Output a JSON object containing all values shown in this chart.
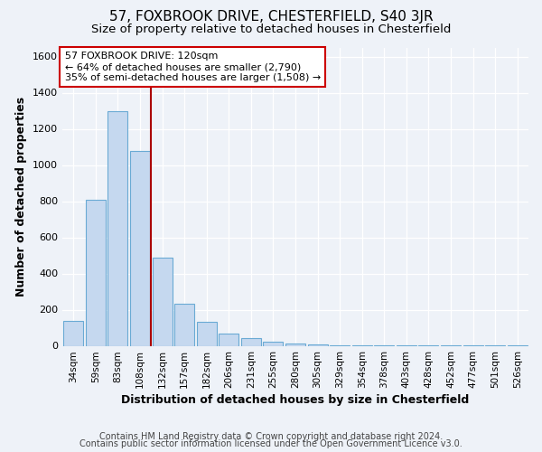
{
  "title": "57, FOXBROOK DRIVE, CHESTERFIELD, S40 3JR",
  "subtitle": "Size of property relative to detached houses in Chesterfield",
  "xlabel": "Distribution of detached houses by size in Chesterfield",
  "ylabel": "Number of detached properties",
  "footer_line1": "Contains HM Land Registry data © Crown copyright and database right 2024.",
  "footer_line2": "Contains public sector information licensed under the Open Government Licence v3.0.",
  "categories": [
    "34sqm",
    "59sqm",
    "83sqm",
    "108sqm",
    "132sqm",
    "157sqm",
    "182sqm",
    "206sqm",
    "231sqm",
    "255sqm",
    "280sqm",
    "305sqm",
    "329sqm",
    "354sqm",
    "378sqm",
    "403sqm",
    "428sqm",
    "452sqm",
    "477sqm",
    "501sqm",
    "526sqm"
  ],
  "values": [
    140,
    810,
    1300,
    1080,
    490,
    235,
    135,
    70,
    45,
    25,
    15,
    8,
    4,
    3,
    2,
    2,
    1,
    1,
    1,
    1,
    1
  ],
  "bar_color": "#c5d8ef",
  "bar_edge_color": "#6aaad4",
  "vline_x": 3.5,
  "vline_color": "#aa0000",
  "annotation_text": "57 FOXBROOK DRIVE: 120sqm\n← 64% of detached houses are smaller (2,790)\n35% of semi-detached houses are larger (1,508) →",
  "annotation_box_color": "#ffffff",
  "annotation_box_edge_color": "#cc0000",
  "ylim": [
    0,
    1650
  ],
  "background_color": "#eef2f8",
  "grid_color": "#ffffff",
  "title_fontsize": 11,
  "subtitle_fontsize": 9.5,
  "axis_label_fontsize": 9,
  "tick_fontsize": 7.5,
  "footer_fontsize": 7
}
